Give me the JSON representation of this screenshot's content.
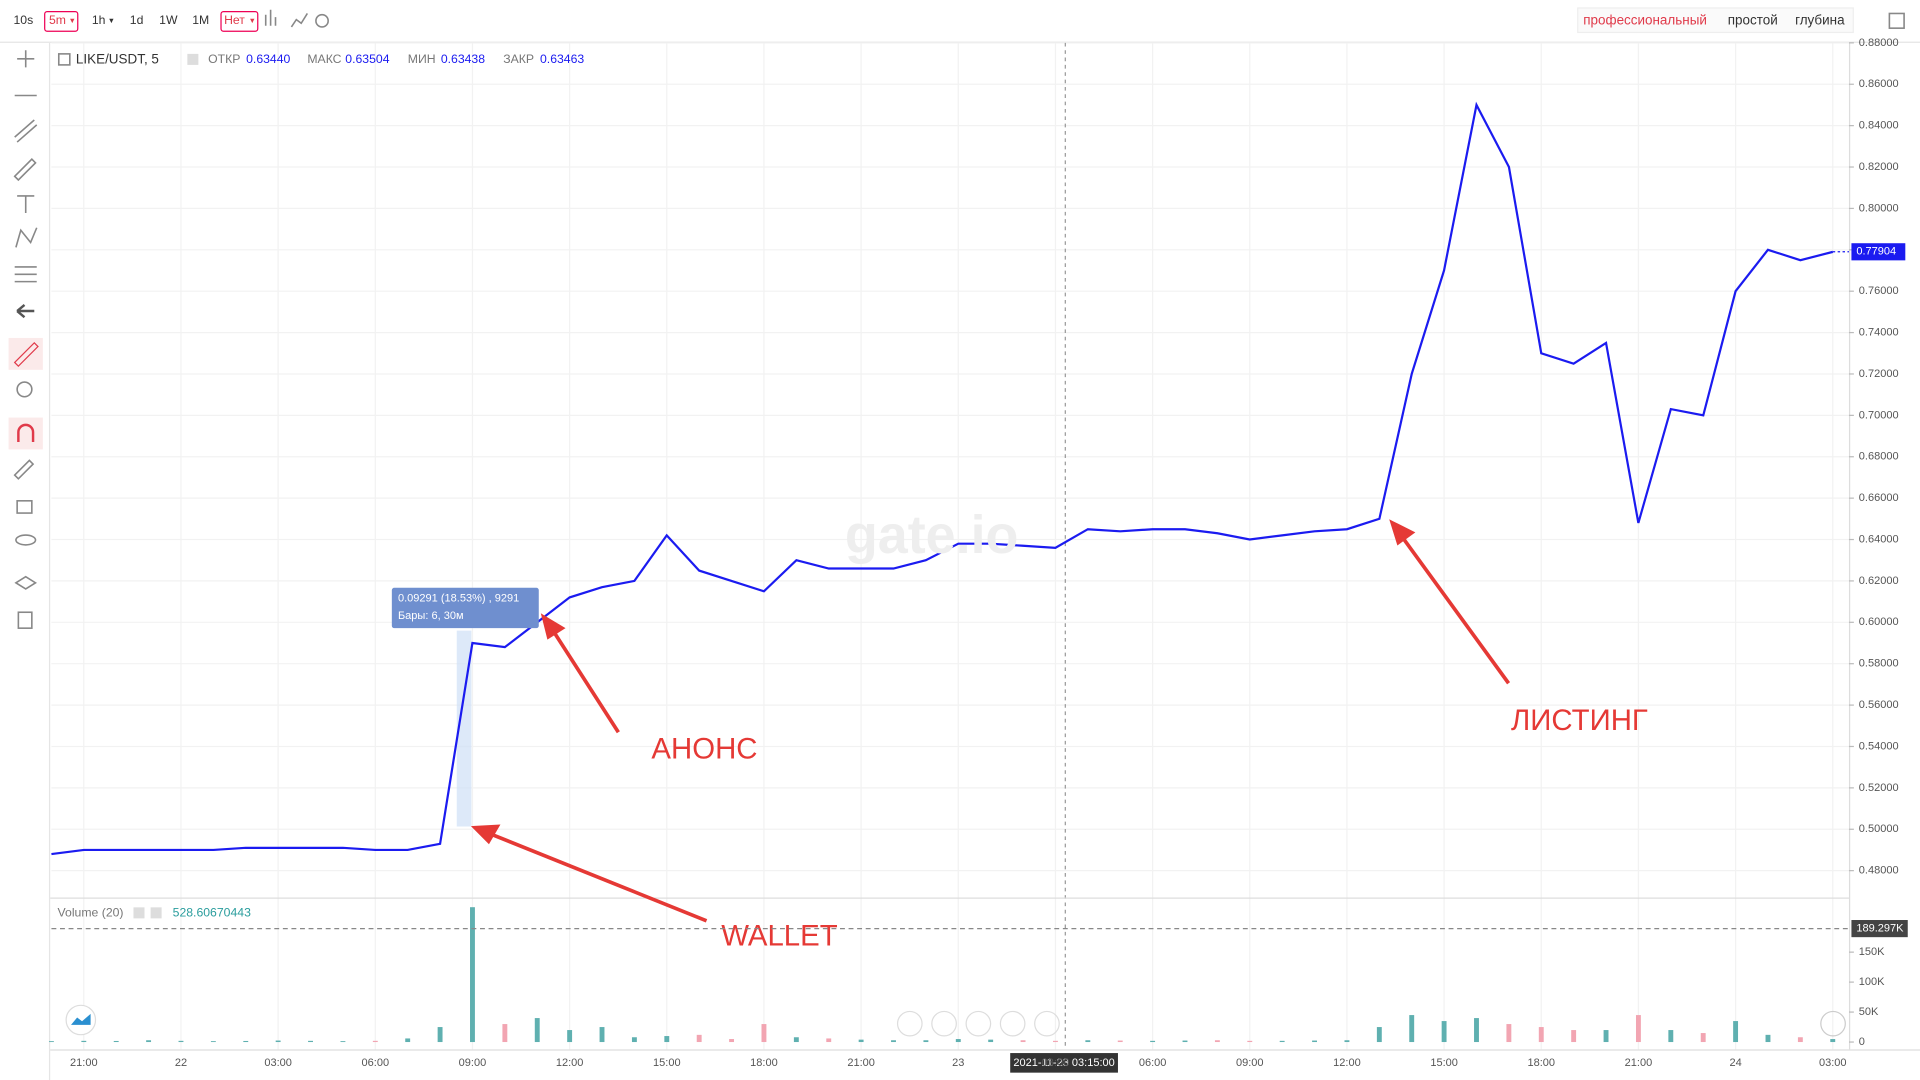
{
  "toolbar": {
    "intervals": [
      "10s",
      "5m",
      "1h",
      "1d",
      "1W",
      "1M",
      "Нет"
    ],
    "views": [
      "профессиональный",
      "простой",
      "глубина"
    ]
  },
  "chart_data": {
    "type": "line",
    "series": [
      {
        "name": "LIKE/USDT, 5",
        "color": "#1b1bf0",
        "values": [
          0.488,
          0.49,
          0.49,
          0.49,
          0.49,
          0.49,
          0.491,
          0.491,
          0.491,
          0.491,
          0.49,
          0.49,
          0.493,
          0.59,
          0.588,
          0.6,
          0.612,
          0.617,
          0.62,
          0.642,
          0.625,
          0.62,
          0.615,
          0.63,
          0.626,
          0.626,
          0.626,
          0.63,
          0.638,
          0.638,
          0.637,
          0.636,
          0.645,
          0.644,
          0.645,
          0.645,
          0.643,
          0.64,
          0.642,
          0.644,
          0.645,
          0.65,
          0.72,
          0.77,
          0.85,
          0.82,
          0.73,
          0.725,
          0.735,
          0.648,
          0.703,
          0.7,
          0.76,
          0.78,
          0.775,
          0.779
        ]
      }
    ],
    "categories": [
      null,
      "21:00",
      null,
      null,
      "22",
      null,
      null,
      "03:00",
      null,
      null,
      "06:00",
      null,
      null,
      "09:00",
      null,
      null,
      "12:00",
      null,
      null,
      "15:00",
      null,
      null,
      "18:00",
      null,
      null,
      "21:00",
      null,
      null,
      "23",
      null,
      null,
      "03:00",
      null,
      null,
      "06:00",
      null,
      null,
      "09:00",
      null,
      null,
      "12:00",
      null,
      null,
      "15:00",
      null,
      null,
      "18:00",
      null,
      null,
      "21:00",
      null,
      null,
      "24",
      null,
      null,
      "03:00"
    ],
    "ohlc_labels": [
      "ОТКР",
      "МАКС",
      "МИН",
      "ЗАКР"
    ],
    "ohlc_values": [
      "0.63440",
      "0.63504",
      "0.63438",
      "0.63463"
    ],
    "ylim": [
      0.467,
      0.88
    ],
    "yticks": [
      {
        "value": 0.48,
        "label": "0.48000"
      },
      {
        "value": 0.5,
        "label": "0.50000"
      },
      {
        "value": 0.52,
        "label": "0.52000"
      },
      {
        "value": 0.54,
        "label": "0.54000"
      },
      {
        "value": 0.56,
        "label": "0.56000"
      },
      {
        "value": 0.58,
        "label": "0.58000"
      },
      {
        "value": 0.6,
        "label": "0.60000"
      },
      {
        "value": 0.62,
        "label": "0.62000"
      },
      {
        "value": 0.64,
        "label": "0.64000"
      },
      {
        "value": 0.66,
        "label": "0.66000"
      },
      {
        "value": 0.68,
        "label": "0.68000"
      },
      {
        "value": 0.7,
        "label": "0.70000"
      },
      {
        "value": 0.72,
        "label": "0.72000"
      },
      {
        "value": 0.74,
        "label": "0.74000"
      },
      {
        "value": 0.76,
        "label": "0.76000"
      },
      {
        "value": 0.78,
        "label": "0.78000"
      },
      {
        "value": 0.8,
        "label": "0.80000"
      },
      {
        "value": 0.82,
        "label": "0.82000"
      },
      {
        "value": 0.84,
        "label": "0.84000"
      },
      {
        "value": 0.86,
        "label": "0.86000"
      },
      {
        "value": 0.88,
        "label": "0.88000"
      }
    ],
    "grid": true,
    "last_price": 0.77904,
    "crosshair_label": "2021-11-23 03:15:00",
    "measure": {
      "text": "0.09291 (18.53%) , 9291",
      "bars": "Бары: 6, 30м"
    },
    "annotations": [
      "WALLET",
      "АНОНС",
      "ЛИСТИНГ"
    ],
    "watermark": "gate.io",
    "volume": {
      "name": "Volume (20)",
      "value": 528.60670443,
      "up_color": "#5fb0b0",
      "down_color": "#f2a5b2",
      "values": [
        1500,
        2000,
        1800,
        3000,
        2000,
        1500,
        1800,
        2500,
        2000,
        1500,
        2000,
        6000,
        25000,
        225000,
        30000,
        40000,
        20000,
        25000,
        8000,
        10000,
        12000,
        5000,
        30000,
        8000,
        6000,
        4000,
        3000,
        3000,
        5000,
        4000,
        3000,
        2000,
        3000,
        2500,
        2000,
        2500,
        3000,
        2000,
        2000,
        2500,
        3000,
        25000,
        45000,
        35000,
        40000,
        30000,
        25000,
        20000,
        20000,
        45000,
        20000,
        15000,
        35000,
        12000,
        8000,
        5000
      ],
      "ylim": [
        0,
        237000
      ],
      "yticks": [
        0,
        {
          "value": 50000,
          "label": "50K"
        },
        {
          "value": 100000,
          "label": "100K"
        },
        {
          "value": 150000,
          "label": "150K"
        }
      ],
      "marker": {
        "value": 189297,
        "label": "189.297K"
      }
    }
  }
}
